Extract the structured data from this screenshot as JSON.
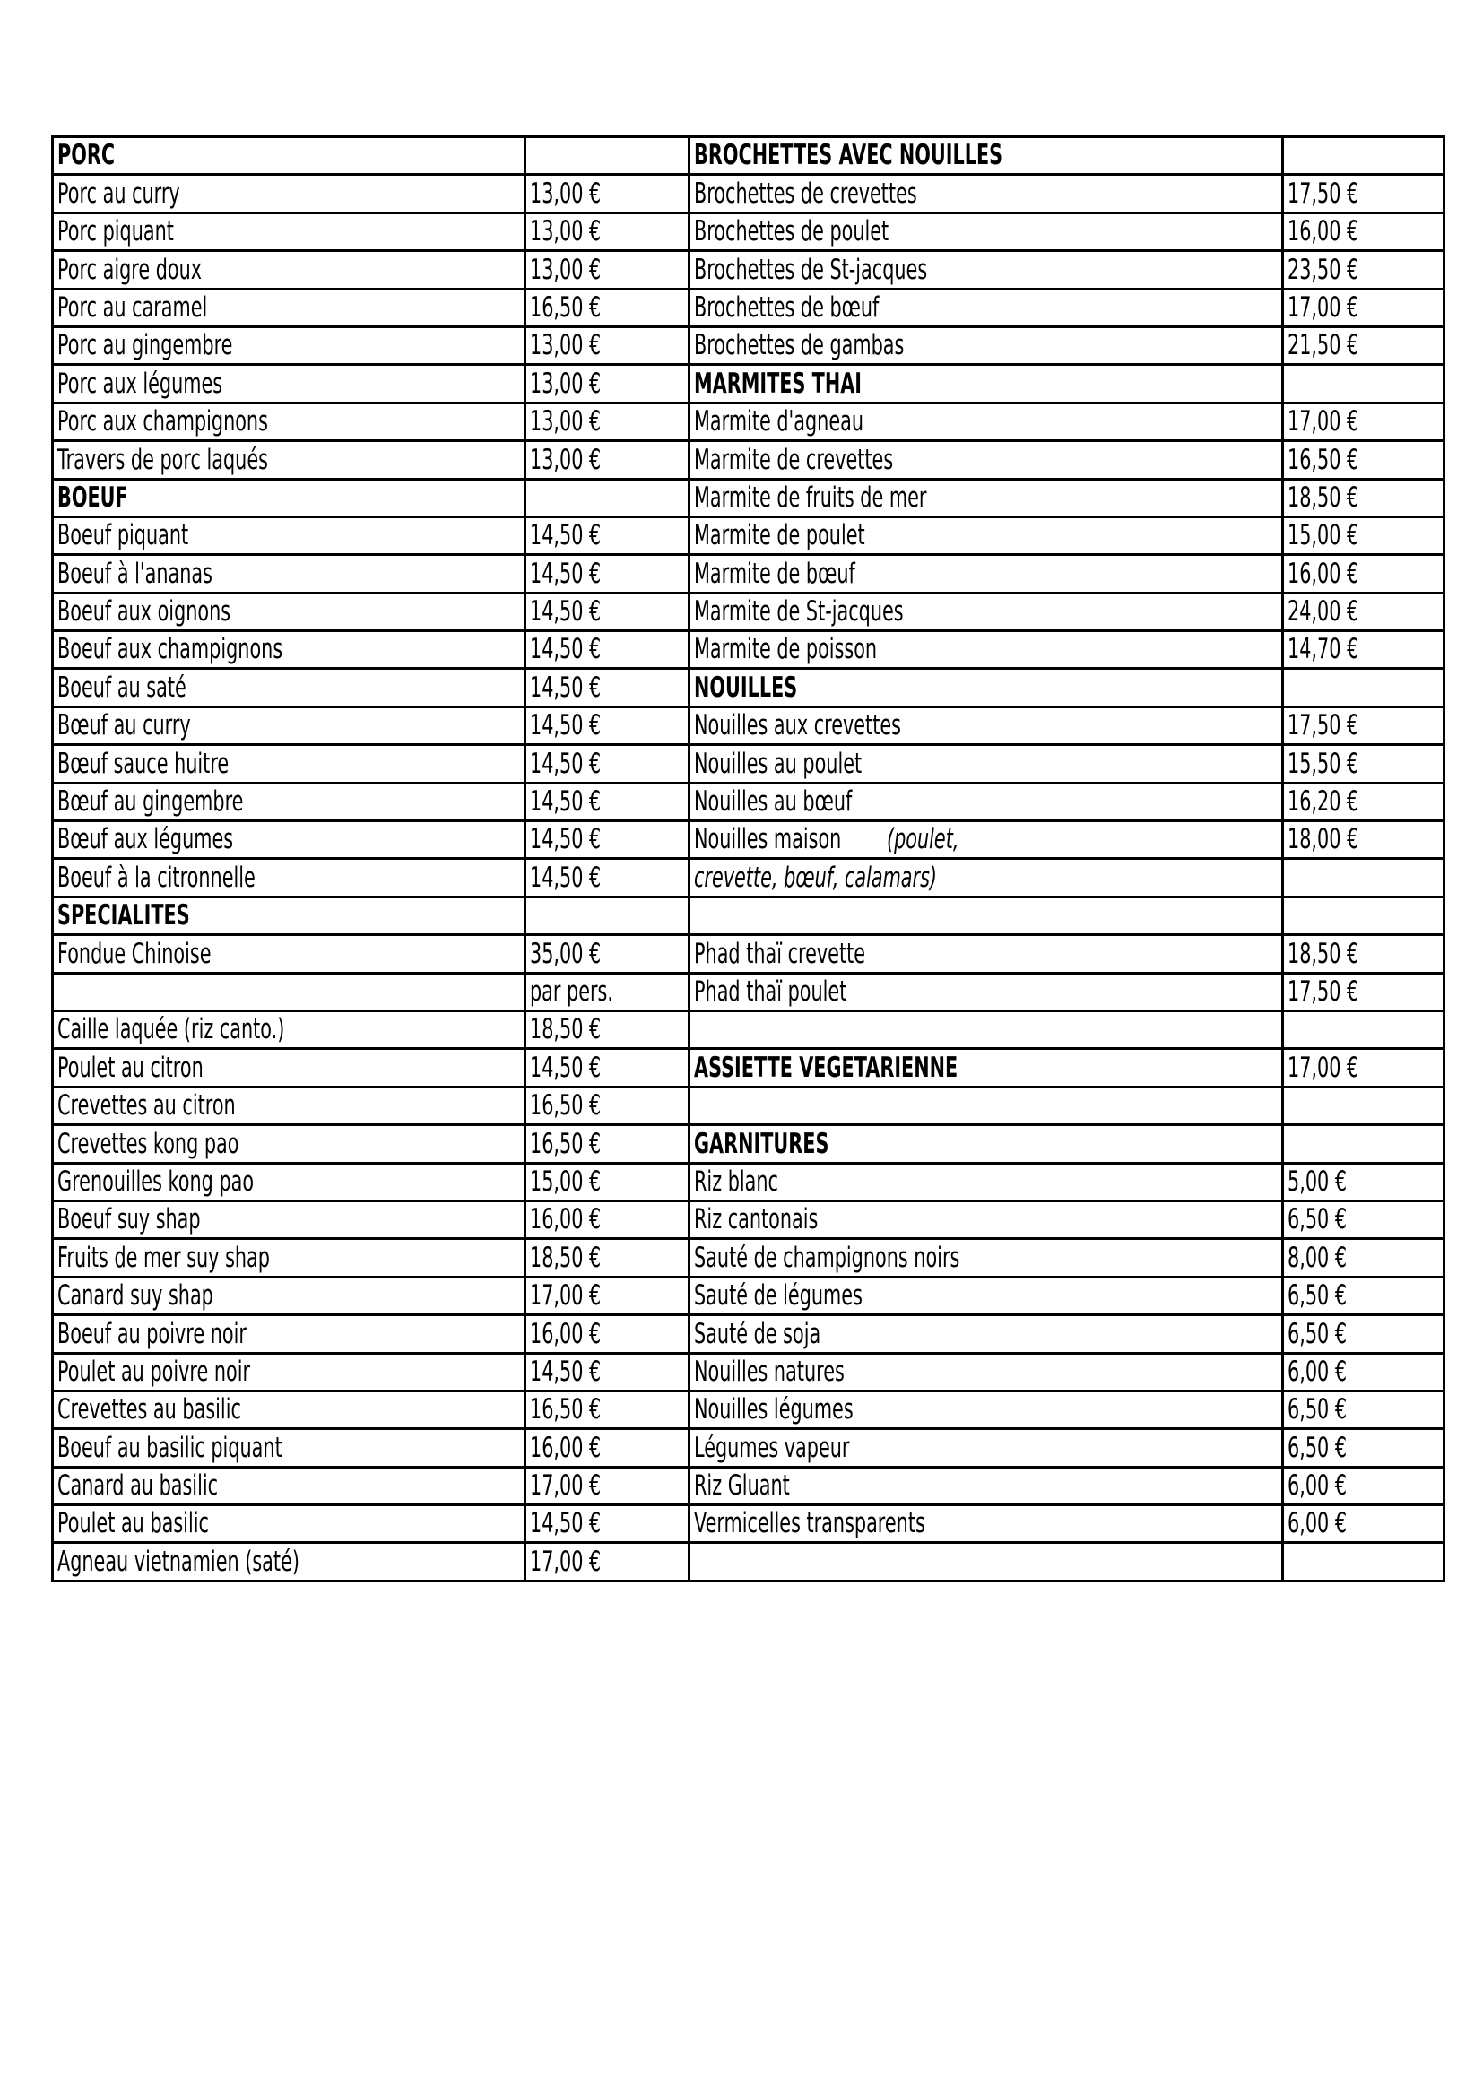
{
  "rows": [
    [
      {
        "t": "PORC",
        "b": 1
      },
      {
        "t": ""
      },
      {
        "t": "BROCHETTES AVEC NOUILLES",
        "b": 1
      },
      {
        "t": ""
      }
    ],
    [
      {
        "t": "Porc au curry"
      },
      {
        "t": "13,00 €"
      },
      {
        "t": "Brochettes de crevettes"
      },
      {
        "t": "17,50 €"
      }
    ],
    [
      {
        "t": "Porc piquant"
      },
      {
        "t": "13,00 €"
      },
      {
        "t": "Brochettes de poulet"
      },
      {
        "t": "16,00 €"
      }
    ],
    [
      {
        "t": "Porc aigre doux"
      },
      {
        "t": "13,00 €"
      },
      {
        "t": "Brochettes de St-jacques"
      },
      {
        "t": "23,50 €"
      }
    ],
    [
      {
        "t": "Porc au caramel"
      },
      {
        "t": "16,50 €"
      },
      {
        "t": "Brochettes de bœuf"
      },
      {
        "t": "17,00 €"
      }
    ],
    [
      {
        "t": "Porc au gingembre"
      },
      {
        "t": "13,00 €"
      },
      {
        "t": "Brochettes de gambas"
      },
      {
        "t": "21,50 €"
      }
    ],
    [
      {
        "t": "Porc aux légumes"
      },
      {
        "t": "13,00 €"
      },
      {
        "t": "MARMITES THAI",
        "b": 1
      },
      {
        "t": ""
      }
    ],
    [
      {
        "t": "Porc aux champignons"
      },
      {
        "t": "13,00 €"
      },
      {
        "t": "Marmite d'agneau"
      },
      {
        "t": "17,00 €"
      }
    ],
    [
      {
        "t": "Travers de porc laqués"
      },
      {
        "t": "13,00 €"
      },
      {
        "t": "Marmite de crevettes"
      },
      {
        "t": "16,50 €"
      }
    ],
    [
      {
        "t": "BOEUF",
        "b": 1
      },
      {
        "t": ""
      },
      {
        "t": "Marmite de fruits de mer"
      },
      {
        "t": "18,50 €"
      }
    ],
    [
      {
        "t": "Boeuf piquant"
      },
      {
        "t": "14,50 €"
      },
      {
        "t": "Marmite de poulet"
      },
      {
        "t": "15,00 €"
      }
    ],
    [
      {
        "t": "Boeuf à l'ananas"
      },
      {
        "t": "14,50 €"
      },
      {
        "t": "Marmite de bœuf"
      },
      {
        "t": "16,00 €"
      }
    ],
    [
      {
        "t": "Boeuf aux oignons"
      },
      {
        "t": "14,50 €"
      },
      {
        "t": "Marmite de St-jacques"
      },
      {
        "t": "24,00 €"
      }
    ],
    [
      {
        "t": "Boeuf aux champignons"
      },
      {
        "t": "14,50 €"
      },
      {
        "t": "Marmite de poisson"
      },
      {
        "t": "14,70 €"
      }
    ],
    [
      {
        "t": "Boeuf au saté"
      },
      {
        "t": "14,50 €"
      },
      {
        "t": "NOUILLES",
        "b": 1
      },
      {
        "t": ""
      }
    ],
    [
      {
        "t": "Bœuf au curry"
      },
      {
        "t": "14,50 €"
      },
      {
        "t": "Nouilles aux crevettes"
      },
      {
        "t": "17,50 €"
      }
    ],
    [
      {
        "t": "Bœuf sauce huitre"
      },
      {
        "t": "14,50 €"
      },
      {
        "t": "Nouilles au poulet"
      },
      {
        "t": "15,50 €"
      }
    ],
    [
      {
        "t": "Bœuf au gingembre"
      },
      {
        "t": "14,50 €"
      },
      {
        "t": "Nouilles au bœuf"
      },
      {
        "t": "16,20 €"
      }
    ],
    [
      {
        "t": "Bœuf aux légumes"
      },
      {
        "t": "14,50 €"
      },
      {
        "t": "Nouilles maison",
        "extra": "(poulet,"
      },
      {
        "t": "18,00 €"
      }
    ],
    [
      {
        "t": "Boeuf à la citronnelle"
      },
      {
        "t": "14,50 €"
      },
      {
        "t": "crevette, bœuf, calamars)",
        "i": 1
      },
      {
        "t": ""
      }
    ],
    [
      {
        "t": "SPECIALITES",
        "b": 1
      },
      {
        "t": ""
      },
      {
        "t": ""
      },
      {
        "t": ""
      }
    ],
    [
      {
        "t": "Fondue Chinoise"
      },
      {
        "t": "35,00 €"
      },
      {
        "t": "Phad thaï crevette"
      },
      {
        "t": "18,50 €"
      }
    ],
    [
      {
        "t": ""
      },
      {
        "t": "par pers."
      },
      {
        "t": "Phad thaï poulet"
      },
      {
        "t": "17,50 €"
      }
    ],
    [
      {
        "t": "Caille laquée  (riz canto.)"
      },
      {
        "t": "18,50 €"
      },
      {
        "t": ""
      },
      {
        "t": ""
      }
    ],
    [
      {
        "t": "Poulet au citron"
      },
      {
        "t": "14,50 €"
      },
      {
        "t": "ASSIETTE VEGETARIENNE",
        "b": 1
      },
      {
        "t": "17,00 €"
      }
    ],
    [
      {
        "t": "Crevettes au citron"
      },
      {
        "t": "16,50 €"
      },
      {
        "t": ""
      },
      {
        "t": ""
      }
    ],
    [
      {
        "t": "Crevettes kong pao"
      },
      {
        "t": "16,50 €"
      },
      {
        "t": "GARNITURES",
        "b": 1
      },
      {
        "t": ""
      }
    ],
    [
      {
        "t": "Grenouilles kong pao"
      },
      {
        "t": "15,00 €"
      },
      {
        "t": "Riz blanc"
      },
      {
        "t": "5,00 €"
      }
    ],
    [
      {
        "t": "Boeuf suy shap"
      },
      {
        "t": "16,00 €"
      },
      {
        "t": "Riz cantonais"
      },
      {
        "t": "6,50 €"
      }
    ],
    [
      {
        "t": "Fruits de mer suy shap"
      },
      {
        "t": "18,50 €"
      },
      {
        "t": "Sauté de champignons noirs"
      },
      {
        "t": "8,00 €"
      }
    ],
    [
      {
        "t": "Canard suy shap"
      },
      {
        "t": "17,00 €"
      },
      {
        "t": "Sauté de légumes"
      },
      {
        "t": "6,50 €"
      }
    ],
    [
      {
        "t": "Boeuf au poivre noir"
      },
      {
        "t": "16,00 €"
      },
      {
        "t": "Sauté de soja"
      },
      {
        "t": "6,50 €"
      }
    ],
    [
      {
        "t": "Poulet au poivre noir"
      },
      {
        "t": "14,50 €"
      },
      {
        "t": "Nouilles natures"
      },
      {
        "t": "6,00 €"
      }
    ],
    [
      {
        "t": "Crevettes au basilic"
      },
      {
        "t": "16,50 €"
      },
      {
        "t": "Nouilles légumes"
      },
      {
        "t": "6,50 €"
      }
    ],
    [
      {
        "t": "Boeuf au basilic piquant"
      },
      {
        "t": "16,00 €"
      },
      {
        "t": "Légumes vapeur"
      },
      {
        "t": "6,50 €"
      }
    ],
    [
      {
        "t": "Canard au basilic"
      },
      {
        "t": "17,00 €"
      },
      {
        "t": "Riz Gluant"
      },
      {
        "t": "6,00 €"
      }
    ],
    [
      {
        "t": "Poulet au basilic"
      },
      {
        "t": "14,50 €"
      },
      {
        "t": "Vermicelles transparents"
      },
      {
        "t": "6,00 €"
      }
    ],
    [
      {
        "t": "Agneau vietnamien (saté)"
      },
      {
        "t": "17,00 €"
      },
      {
        "t": ""
      },
      {
        "t": ""
      }
    ]
  ]
}
